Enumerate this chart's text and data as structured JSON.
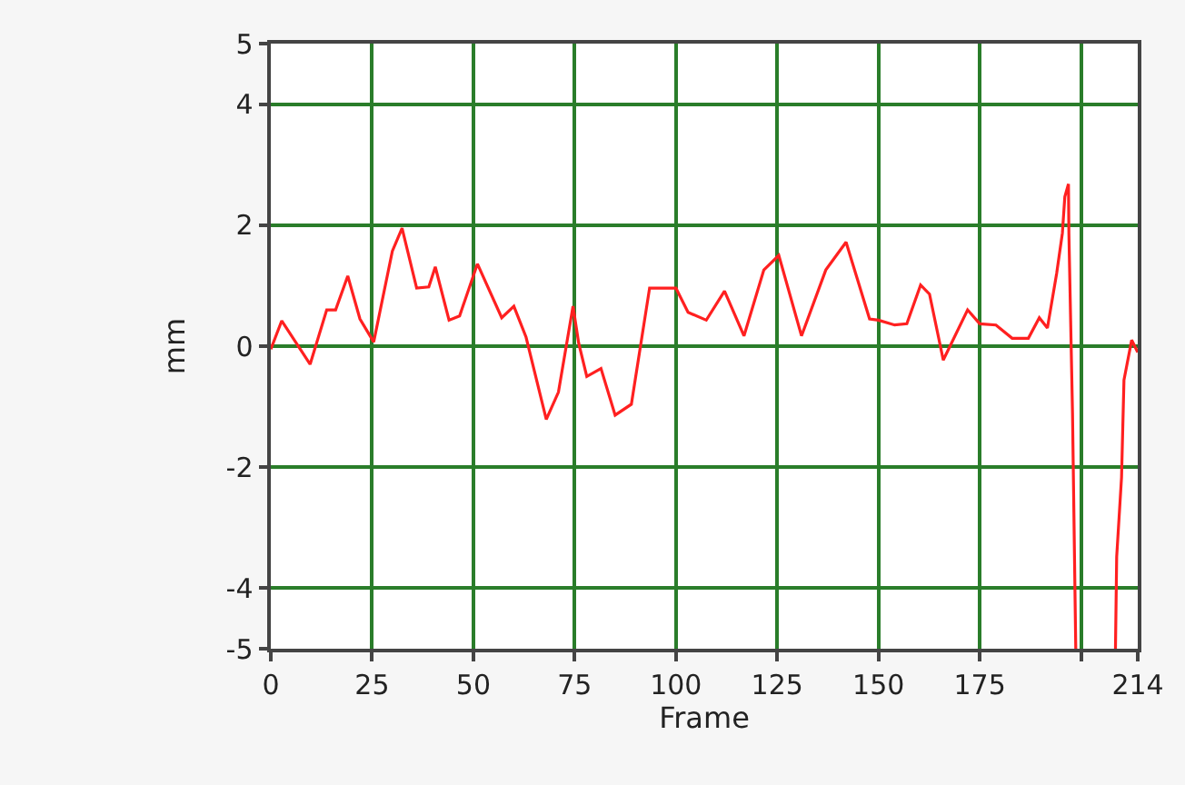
{
  "chart_data": {
    "type": "line",
    "xlabel": "Frame",
    "ylabel": "mm",
    "x": [
      0,
      2.7,
      9.7,
      13.8,
      16,
      19,
      22,
      25.4,
      30,
      32.4,
      36,
      39,
      40.6,
      44,
      46.6,
      51,
      57,
      60,
      63,
      68,
      71,
      74.6,
      76,
      78,
      81.5,
      85,
      89,
      93.5,
      100,
      103,
      107.5,
      112,
      116.8,
      121.7,
      125.4,
      131,
      137,
      142,
      147.8,
      150,
      154,
      157,
      160.4,
      162.6,
      166,
      172,
      175,
      179,
      183,
      187,
      189.7,
      191.7,
      194,
      195.4,
      196,
      196.9,
      197,
      197.9,
      198.7,
      203,
      208.5,
      208.8,
      210,
      210.6,
      212.5,
      214
    ],
    "series": [
      {
        "color": "#ff2020",
        "values": [
          -0.05,
          0.42,
          -0.3,
          0.6,
          0.6,
          1.16,
          0.45,
          0.07,
          1.57,
          1.95,
          0.96,
          0.98,
          1.31,
          0.43,
          0.5,
          1.36,
          0.47,
          0.66,
          0.15,
          -1.21,
          -0.76,
          0.66,
          0.05,
          -0.5,
          -0.37,
          -1.14,
          -0.96,
          0.96,
          0.96,
          0.56,
          0.43,
          0.91,
          0.17,
          1.26,
          1.5,
          0.17,
          1.26,
          1.72,
          0.45,
          0.43,
          0.35,
          0.37,
          1.01,
          0.86,
          -0.23,
          0.6,
          0.37,
          0.35,
          0.13,
          0.13,
          0.47,
          0.3,
          1.21,
          1.87,
          2.47,
          2.68,
          1.87,
          -1.11,
          -5,
          null,
          -5,
          -3.48,
          -2.17,
          -0.56,
          0.1,
          -0.1
        ]
      }
    ],
    "xlim": [
      0,
      214
    ],
    "xticks": [
      0,
      25,
      50,
      75,
      100,
      125,
      150,
      175,
      {
        "value": 200,
        "label": null
      },
      214
    ],
    "ylim": [
      -5,
      5
    ],
    "yticks": [
      -5,
      -4,
      -2,
      0,
      2,
      4,
      5
    ],
    "grid": true,
    "marker": "none",
    "line_style": "solid"
  }
}
